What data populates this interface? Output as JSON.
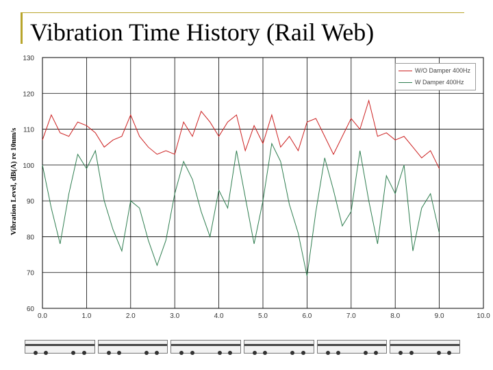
{
  "slide": {
    "title": "Vibration Time History (Rail Web)"
  },
  "colors": {
    "accent": "#b8a52c",
    "series_without": "#cc1f1f",
    "series_with": "#2e7d4f",
    "grid": "#000000"
  },
  "chart_data": {
    "type": "line",
    "title": "",
    "xlabel": "",
    "ylabel": "Vibration Level, dB(A) re 10nm/s",
    "xlim": [
      0,
      10
    ],
    "ylim": [
      60,
      130
    ],
    "x_ticks": [
      "0.0",
      "1.0",
      "2.0",
      "3.0",
      "4.0",
      "5.0",
      "6.0",
      "7.0",
      "8.0",
      "9.0",
      "10.0"
    ],
    "y_ticks": [
      "60",
      "70",
      "80",
      "90",
      "100",
      "110",
      "120",
      "130"
    ],
    "grid": true,
    "legend_position": "top-right",
    "series": [
      {
        "name": "W/O Damper 400Hz",
        "x": [
          0.0,
          0.2,
          0.4,
          0.6,
          0.8,
          1.0,
          1.2,
          1.4,
          1.6,
          1.8,
          2.0,
          2.2,
          2.4,
          2.6,
          2.8,
          3.0,
          3.2,
          3.4,
          3.6,
          3.8,
          4.0,
          4.2,
          4.4,
          4.6,
          4.8,
          5.0,
          5.2,
          5.4,
          5.6,
          5.8,
          6.0,
          6.2,
          6.4,
          6.6,
          6.8,
          7.0,
          7.2,
          7.4,
          7.6,
          7.8,
          8.0,
          8.2,
          8.4,
          8.6,
          8.8,
          9.0
        ],
        "values": [
          107,
          114,
          109,
          108,
          112,
          111,
          109,
          105,
          107,
          108,
          114,
          108,
          105,
          103,
          104,
          103,
          112,
          108,
          115,
          112,
          108,
          112,
          114,
          104,
          111,
          106,
          114,
          105,
          108,
          104,
          112,
          113,
          108,
          103,
          108,
          113,
          110,
          118,
          108,
          109,
          107,
          108,
          105,
          102,
          104,
          99
        ]
      },
      {
        "name": "W Damper 400Hz",
        "x": [
          0.0,
          0.2,
          0.4,
          0.6,
          0.8,
          1.0,
          1.2,
          1.4,
          1.6,
          1.8,
          2.0,
          2.2,
          2.4,
          2.6,
          2.8,
          3.0,
          3.2,
          3.4,
          3.6,
          3.8,
          4.0,
          4.2,
          4.4,
          4.6,
          4.8,
          5.0,
          5.2,
          5.4,
          5.6,
          5.8,
          6.0,
          6.2,
          6.4,
          6.6,
          6.8,
          7.0,
          7.2,
          7.4,
          7.6,
          7.8,
          8.0,
          8.2,
          8.4,
          8.6,
          8.8,
          9.0
        ],
        "values": [
          100,
          88,
          78,
          92,
          103,
          99,
          104,
          90,
          82,
          76,
          90,
          88,
          79,
          72,
          79,
          92,
          101,
          96,
          87,
          80,
          93,
          88,
          104,
          91,
          78,
          90,
          106,
          101,
          89,
          81,
          69,
          87,
          102,
          93,
          83,
          87,
          104,
          90,
          78,
          97,
          92,
          100,
          76,
          88,
          92,
          81
        ]
      }
    ]
  },
  "filmstrip": {
    "cars": 6
  }
}
